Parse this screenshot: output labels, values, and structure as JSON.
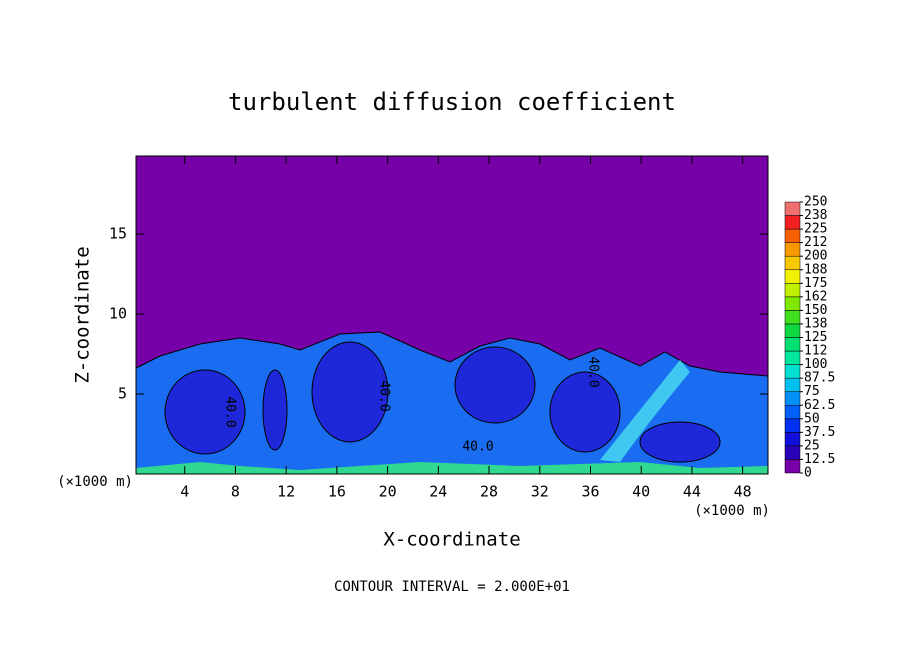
{
  "chart_data": {
    "type": "contour",
    "title": "turbulent diffusion coefficient",
    "x_label": "X-coordinate",
    "y_label": "Z-coordinate",
    "x_unit": "(×1000 m)",
    "footer": "CONTOUR INTERVAL = 2.000E+01",
    "xlim": [
      0,
      50
    ],
    "ylim": [
      0,
      20
    ],
    "xticks": [
      4,
      8,
      12,
      16,
      20,
      24,
      28,
      32,
      36,
      40,
      44,
      48
    ],
    "yticks": [
      5,
      10,
      15
    ],
    "contour_labels": [
      "40.0",
      "40.0",
      "40.0",
      "40.0"
    ],
    "colorbar": {
      "lim": [
        0,
        250
      ],
      "ticks": [
        0,
        12.5,
        25,
        37.5,
        50,
        62.5,
        75,
        87.5,
        100,
        {
          "value": 112.5,
          "label": "112"
        },
        125,
        {
          "value": 137.5,
          "label": "138"
        },
        150,
        {
          "value": 162.5,
          "label": "162"
        },
        175,
        {
          "value": 187.5,
          "label": "188"
        },
        200,
        {
          "value": 212.5,
          "label": "212"
        },
        225,
        {
          "value": 237.5,
          "label": "238"
        },
        250
      ],
      "colors": [
        "#7800a8",
        "#2a00b8",
        "#1010d8",
        "#0030f0",
        "#0060f8",
        "#0090f8",
        "#00c0f0",
        "#00e0d0",
        "#00e8a0",
        "#00e070",
        "#10d840",
        "#40e020",
        "#80e800",
        "#c0f000",
        "#f0f000",
        "#f8c800",
        "#f89800",
        "#f86000",
        "#f02020",
        "#f07070"
      ]
    }
  }
}
